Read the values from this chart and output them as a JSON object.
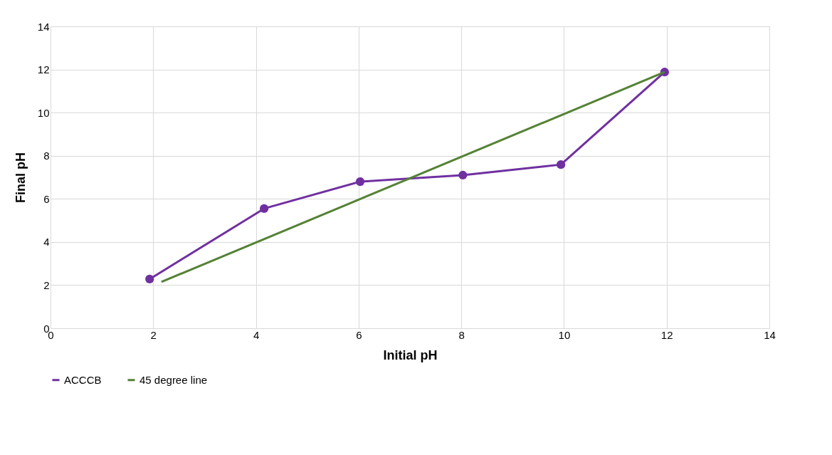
{
  "chart_data": {
    "type": "line",
    "xlabel": "Initial pH",
    "ylabel": "Final pH",
    "series": [
      {
        "name": "ACCCB",
        "color": "#7030a0",
        "marker": "circle",
        "x": [
          1.93,
          4.16,
          6.03,
          8.03,
          9.94,
          11.96
        ],
        "values": [
          2.28,
          5.55,
          6.8,
          7.1,
          7.59,
          11.88
        ]
      },
      {
        "name": "45 degree line",
        "color": "#548235",
        "marker": "none",
        "x": [
          2.16,
          11.96
        ],
        "values": [
          2.15,
          11.88
        ]
      }
    ],
    "xlim": [
      0,
      14
    ],
    "xticks": [
      0,
      2,
      4,
      6,
      8,
      10,
      12,
      14
    ],
    "ylim": [
      0,
      14
    ],
    "yticks": [
      0,
      2,
      4,
      6,
      8,
      10,
      12,
      14
    ],
    "grid": true,
    "legend": "bottom",
    "line_style": "solid"
  }
}
